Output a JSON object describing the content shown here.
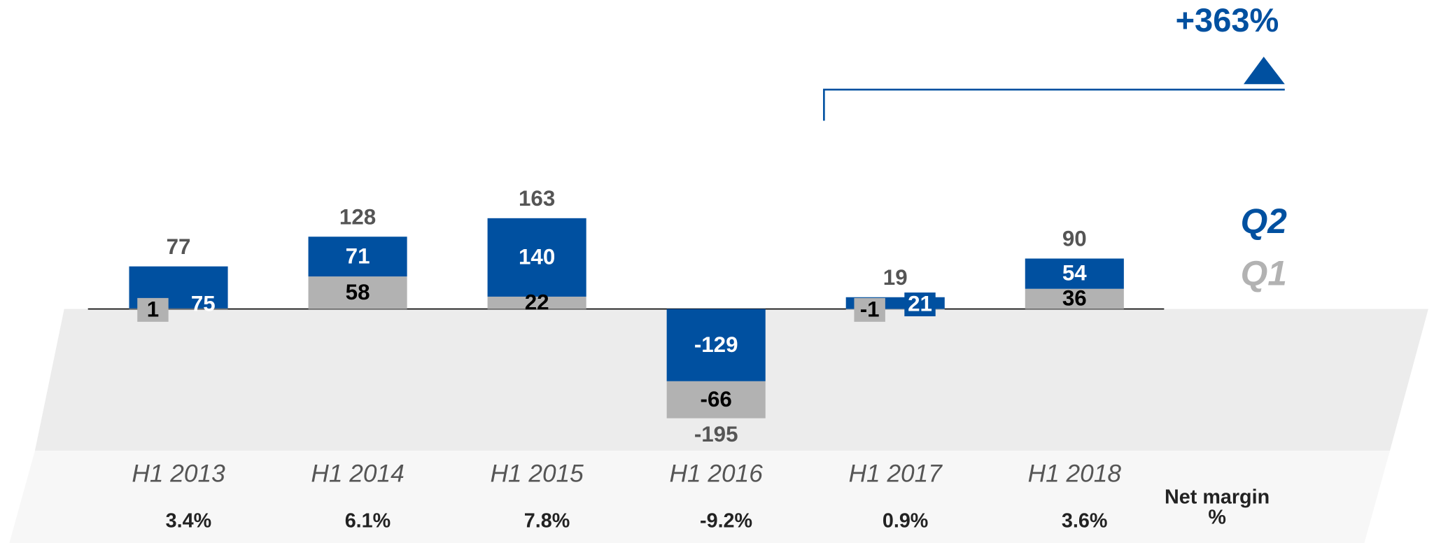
{
  "chart_data": {
    "type": "stacked_bar",
    "categories": [
      "H1 2013",
      "H1 2014",
      "H1 2015",
      "H1 2016",
      "H1 2017",
      "H1 2018"
    ],
    "series": [
      {
        "name": "Q1",
        "color": "#b2b2b2",
        "values": [
          1,
          58,
          22,
          -66,
          -1,
          36
        ]
      },
      {
        "name": "Q2",
        "color": "#0050a0",
        "values": [
          75,
          71,
          140,
          -129,
          21,
          54
        ]
      }
    ],
    "totals": [
      77,
      128,
      163,
      -195,
      19,
      90
    ],
    "annotation": "+363%",
    "net_margin_label": [
      "Net margin",
      "%"
    ],
    "net_margin": {
      "values": [
        3.4,
        6.1,
        7.8,
        -9.2,
        0.9,
        3.6
      ],
      "value_labels": [
        "3.4%",
        "6.1%",
        "7.8%",
        "-9.2%",
        "0.9%",
        "3.6%"
      ]
    }
  }
}
